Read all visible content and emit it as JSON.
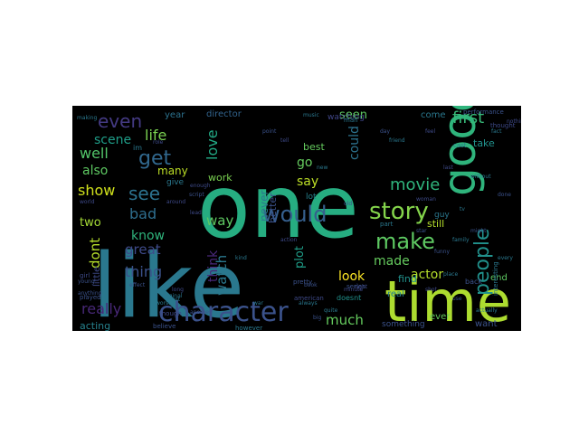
{
  "words": [
    {
      "text": "one",
      "color": "#26ad81"
    },
    {
      "text": "like",
      "color": "#2a788e"
    },
    {
      "text": "time",
      "color": "#addc30"
    },
    {
      "text": "good",
      "color": "#2fb47c"
    },
    {
      "text": "character",
      "color": "#3b528b"
    },
    {
      "text": "story",
      "color": "#84d44b"
    },
    {
      "text": "would",
      "color": "#355f8d"
    },
    {
      "text": "make",
      "color": "#5ec962"
    },
    {
      "text": "people",
      "color": "#21918c"
    },
    {
      "text": "even",
      "color": "#443a83"
    },
    {
      "text": "get",
      "color": "#31688e"
    },
    {
      "text": "see",
      "color": "#2c728e"
    },
    {
      "text": "first",
      "color": "#37b878"
    },
    {
      "text": "well",
      "color": "#52c569"
    },
    {
      "text": "movie",
      "color": "#2fb47c"
    },
    {
      "text": "really",
      "color": "#482878"
    },
    {
      "text": "much",
      "color": "#65cb5e"
    },
    {
      "text": "show",
      "color": "#d0e11c"
    },
    {
      "text": "also",
      "color": "#5ec962"
    },
    {
      "text": "life",
      "color": "#7ad151"
    },
    {
      "text": "scene",
      "color": "#1f9e89"
    },
    {
      "text": "dont",
      "color": "#b5de2b"
    },
    {
      "text": "bad",
      "color": "#2e6e8e"
    },
    {
      "text": "great",
      "color": "#3e4a89"
    },
    {
      "text": "thing",
      "color": "#3b528b"
    },
    {
      "text": "watch",
      "color": "#2a788e"
    },
    {
      "text": "love",
      "color": "#22a884"
    },
    {
      "text": "way",
      "color": "#5ec962"
    },
    {
      "text": "know",
      "color": "#2fb47c"
    },
    {
      "text": "could",
      "color": "#2c728e"
    },
    {
      "text": "made",
      "color": "#65cb5e"
    },
    {
      "text": "think",
      "color": "#482878"
    },
    {
      "text": "two",
      "color": "#a5db36"
    },
    {
      "text": "plot",
      "color": "#1f9e89"
    },
    {
      "text": "go",
      "color": "#65cb5e"
    },
    {
      "text": "say",
      "color": "#bddf26"
    },
    {
      "text": "look",
      "color": "#fde725"
    },
    {
      "text": "actor",
      "color": "#b5de2b"
    },
    {
      "text": "seen",
      "color": "#5ec962"
    },
    {
      "text": "acting",
      "color": "#26828e"
    },
    {
      "text": "many",
      "color": "#bddf26"
    },
    {
      "text": "never",
      "color": "#2a788e"
    },
    {
      "text": "better",
      "color": "#3b528b"
    },
    {
      "text": "best",
      "color": "#65cb5e"
    },
    {
      "text": "year",
      "color": "#2c728e"
    },
    {
      "text": "director",
      "color": "#32648e"
    },
    {
      "text": "watching",
      "color": "#404688"
    },
    {
      "text": "come",
      "color": "#2a788e"
    },
    {
      "text": "take",
      "color": "#21918c"
    },
    {
      "text": "end",
      "color": "#5ec962"
    },
    {
      "text": "lot",
      "color": "#26828e"
    },
    {
      "text": "work",
      "color": "#7ad151"
    },
    {
      "text": "still",
      "color": "#b5de2b"
    },
    {
      "text": "find",
      "color": "#21918c"
    },
    {
      "text": "real",
      "color": "#26828e"
    },
    {
      "text": "ever",
      "color": "#65cb5e"
    },
    {
      "text": "want",
      "color": "#3b528b"
    },
    {
      "text": "something",
      "color": "#3b528b"
    },
    {
      "text": "doesnt",
      "color": "#21918c"
    },
    {
      "text": "little",
      "color": "#3e4a89"
    },
    {
      "text": "give",
      "color": "#2a788e"
    },
    {
      "text": "im",
      "color": "#2a788e"
    },
    {
      "text": "performance",
      "color": "#3b528b"
    },
    {
      "text": "guy",
      "color": "#2a788e"
    },
    {
      "text": "back",
      "color": "#3b528b"
    },
    {
      "text": "man",
      "color": "#2a788e"
    },
    {
      "text": "girl",
      "color": "#3e4a89"
    },
    {
      "text": "played",
      "color": "#3b528b"
    },
    {
      "text": "cast",
      "color": "#2a788e"
    },
    {
      "text": "thought",
      "color": "#3e4a89"
    },
    {
      "text": "interesting",
      "color": "#2a788e"
    },
    {
      "text": "series",
      "color": "#3b528b"
    },
    {
      "text": "american",
      "color": "#3e4a89"
    },
    {
      "text": "believe",
      "color": "#3b528b"
    },
    {
      "text": "however",
      "color": "#2a788e"
    },
    {
      "text": "though",
      "color": "#3e4a89"
    },
    {
      "text": "original",
      "color": "#2a788e"
    },
    {
      "text": "pretty",
      "color": "#3b528b"
    },
    {
      "text": "part",
      "color": "#2a788e"
    },
    {
      "text": "long",
      "color": "#3e4a89"
    },
    {
      "text": "music",
      "color": "#2a788e"
    },
    {
      "text": "script",
      "color": "#3b528b"
    },
    {
      "text": "making",
      "color": "#2a788e"
    },
    {
      "text": "world",
      "color": "#3e4a89"
    },
    {
      "text": "actually",
      "color": "#2a788e"
    },
    {
      "text": "funny",
      "color": "#3b528b"
    },
    {
      "text": "nothing",
      "color": "#3e4a89"
    },
    {
      "text": "place",
      "color": "#2a788e"
    },
    {
      "text": "book",
      "color": "#3b528b"
    },
    {
      "text": "right",
      "color": "#3e4a89"
    },
    {
      "text": "must",
      "color": "#2a788e"
    },
    {
      "text": "young",
      "color": "#3b528b"
    },
    {
      "text": "role",
      "color": "#3e4a89"
    },
    {
      "text": "fact",
      "color": "#2a788e"
    },
    {
      "text": "effect",
      "color": "#3b528b"
    },
    {
      "text": "tv",
      "color": "#2a788e"
    },
    {
      "text": "around",
      "color": "#3e4a89"
    },
    {
      "text": "always",
      "color": "#2a788e"
    },
    {
      "text": "anything",
      "color": "#3b528b"
    },
    {
      "text": "minute",
      "color": "#3e4a89"
    },
    {
      "text": "quite",
      "color": "#2a788e"
    },
    {
      "text": "big",
      "color": "#3b528b"
    },
    {
      "text": "enough",
      "color": "#3e4a89"
    },
    {
      "text": "worst",
      "color": "#2a788e"
    },
    {
      "text": "point",
      "color": "#3b528b"
    },
    {
      "text": "tell",
      "color": "#3e4a89"
    },
    {
      "text": "new",
      "color": "#2a788e"
    },
    {
      "text": "old",
      "color": "#3b528b"
    },
    {
      "text": "woman",
      "color": "#3e4a89"
    },
    {
      "text": "family",
      "color": "#2a788e"
    },
    {
      "text": "star",
      "color": "#3b528b"
    },
    {
      "text": "action",
      "color": "#3e4a89"
    },
    {
      "text": "kind",
      "color": "#2a788e"
    },
    {
      "text": "another",
      "color": "#3b528b"
    },
    {
      "text": "feel",
      "color": "#3e4a89"
    },
    {
      "text": "friend",
      "color": "#2a788e"
    },
    {
      "text": "day",
      "color": "#3b528b"
    },
    {
      "text": "last",
      "color": "#3e4a89"
    },
    {
      "text": "without",
      "color": "#2a788e"
    },
    {
      "text": "done",
      "color": "#3b528b"
    },
    {
      "text": "lead",
      "color": "#3e4a89"
    },
    {
      "text": "war",
      "color": "#2a788e"
    },
    {
      "text": "use",
      "color": "#3b528b"
    },
    {
      "text": "shot",
      "color": "#3e4a89"
    },
    {
      "text": "every",
      "color": "#2a788e"
    },
    {
      "text": "might",
      "color": "#3b528b"
    }
  ]
}
